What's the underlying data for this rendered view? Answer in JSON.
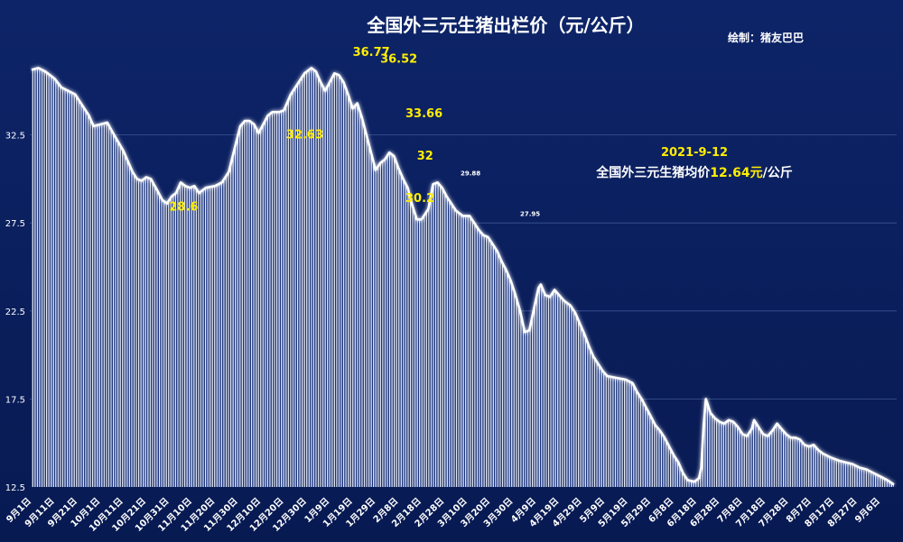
{
  "chart_data": {
    "type": "area",
    "title": "全国外三元生猪出栏价（元/公斤）",
    "credit": "绘制：猪友巴巴",
    "ylim": [
      12.5,
      37.5
    ],
    "yticks": [
      {
        "v": 12.5,
        "label": "12.5"
      },
      {
        "v": 17.5,
        "label": "17.5"
      },
      {
        "v": 22.5,
        "label": "22.5"
      },
      {
        "v": 27.5,
        "label": "27.5"
      },
      {
        "v": 32.5,
        "label": "32.5"
      }
    ],
    "xlabels": [
      "9月1日",
      "9月11日",
      "9月21日",
      "10月1日",
      "10月11日",
      "10月21日",
      "10月31日",
      "11月10日",
      "11月20日",
      "11月30日",
      "12月10日",
      "12月20日",
      "12月30日",
      "1月9日",
      "1月19日",
      "1月29日",
      "2月8日",
      "2月18日",
      "2月28日",
      "3月10日",
      "3月20日",
      "3月30日",
      "4月9日",
      "4月19日",
      "4月29日",
      "5月9日",
      "5月19日",
      "5月29日",
      "6月8日",
      "6月18日",
      "6月28日",
      "7月8日",
      "7月18日",
      "7月28日",
      "8月7日",
      "8月17日",
      "8月27日",
      "9月6日"
    ],
    "days": 377,
    "x_note": "x = day index from 2020-09-01 (0) to 2021-09-12 (376); y = price in 元/公斤",
    "points": [
      [
        0,
        36.2
      ],
      [
        3,
        36.3
      ],
      [
        6,
        36.1
      ],
      [
        10,
        35.7
      ],
      [
        13,
        35.2
      ],
      [
        16,
        35
      ],
      [
        19,
        34.8
      ],
      [
        23,
        34
      ],
      [
        25,
        33.6
      ],
      [
        27,
        33
      ],
      [
        30,
        33.1
      ],
      [
        33,
        33.2
      ],
      [
        36,
        32.5
      ],
      [
        40,
        31.6
      ],
      [
        44,
        30.4
      ],
      [
        46,
        30
      ],
      [
        48,
        29.9
      ],
      [
        50,
        30.1
      ],
      [
        52,
        30
      ],
      [
        55,
        29.3
      ],
      [
        57,
        28.8
      ],
      [
        59,
        28.6
      ],
      [
        61,
        29
      ],
      [
        63,
        29.2
      ],
      [
        65,
        29.8
      ],
      [
        67,
        29.6
      ],
      [
        69,
        29.5
      ],
      [
        71,
        29.6
      ],
      [
        73,
        29.2
      ],
      [
        76,
        29.5
      ],
      [
        80,
        29.6
      ],
      [
        83,
        29.8
      ],
      [
        86,
        30.4
      ],
      [
        89,
        32
      ],
      [
        91,
        33
      ],
      [
        93,
        33.3
      ],
      [
        95,
        33.3
      ],
      [
        97,
        33.1
      ],
      [
        99,
        32.6
      ],
      [
        101,
        33.1
      ],
      [
        103,
        33.6
      ],
      [
        105,
        33.8
      ],
      [
        108,
        33.8
      ],
      [
        110,
        33.9
      ],
      [
        113,
        34.8
      ],
      [
        116,
        35.4
      ],
      [
        119,
        36
      ],
      [
        122,
        36.3
      ],
      [
        124,
        36.1
      ],
      [
        126,
        35.5
      ],
      [
        128,
        35
      ],
      [
        130,
        35.5
      ],
      [
        132,
        36
      ],
      [
        134,
        35.9
      ],
      [
        136,
        35.5
      ],
      [
        138,
        34.8
      ],
      [
        140,
        34
      ],
      [
        142,
        34.3
      ],
      [
        144,
        33.5
      ],
      [
        146,
        32.5
      ],
      [
        148,
        31.5
      ],
      [
        150,
        30.5
      ],
      [
        152,
        30.9
      ],
      [
        154,
        31.1
      ],
      [
        156,
        31.5
      ],
      [
        158,
        31.3
      ],
      [
        160,
        30.6
      ],
      [
        162,
        30
      ],
      [
        164,
        29.5
      ],
      [
        166,
        28.5
      ],
      [
        168,
        27.7
      ],
      [
        170,
        27.7
      ],
      [
        173,
        28.3
      ],
      [
        175,
        29.7
      ],
      [
        177,
        29.8
      ],
      [
        179,
        29.5
      ],
      [
        181,
        29
      ],
      [
        183,
        28.6
      ],
      [
        185,
        28.2
      ],
      [
        188,
        27.9
      ],
      [
        191,
        27.9
      ],
      [
        193,
        27.5
      ],
      [
        195,
        27.1
      ],
      [
        197,
        26.8
      ],
      [
        199,
        26.7
      ],
      [
        201,
        26.3
      ],
      [
        203,
        25.9
      ],
      [
        205,
        25.3
      ],
      [
        207,
        24.8
      ],
      [
        209,
        24.2
      ],
      [
        211,
        23.4
      ],
      [
        213,
        22.5
      ],
      [
        215,
        21.3
      ],
      [
        217,
        21.4
      ],
      [
        219,
        22.6
      ],
      [
        221,
        23.8
      ],
      [
        222,
        24
      ],
      [
        224,
        23.4
      ],
      [
        226,
        23.3
      ],
      [
        228,
        23.7
      ],
      [
        230,
        23.4
      ],
      [
        232,
        23.1
      ],
      [
        235,
        22.8
      ],
      [
        237,
        22.4
      ],
      [
        239,
        21.8
      ],
      [
        241,
        21.2
      ],
      [
        243,
        20.5
      ],
      [
        245,
        19.9
      ],
      [
        247,
        19.5
      ],
      [
        249,
        19.1
      ],
      [
        251,
        18.8
      ],
      [
        255,
        18.7
      ],
      [
        259,
        18.6
      ],
      [
        262,
        18.4
      ],
      [
        264,
        17.9
      ],
      [
        266,
        17.5
      ],
      [
        268,
        17
      ],
      [
        270,
        16.5
      ],
      [
        272,
        16
      ],
      [
        274,
        15.7
      ],
      [
        276,
        15.3
      ],
      [
        278,
        14.8
      ],
      [
        280,
        14.3
      ],
      [
        282,
        13.9
      ],
      [
        284,
        13.3
      ],
      [
        286,
        12.9
      ],
      [
        289,
        12.8
      ],
      [
        291,
        13
      ],
      [
        292,
        13.6
      ],
      [
        293,
        16
      ],
      [
        294,
        17.5
      ],
      [
        296,
        16.7
      ],
      [
        298,
        16.4
      ],
      [
        300,
        16.2
      ],
      [
        302,
        16.1
      ],
      [
        304,
        16.3
      ],
      [
        306,
        16.2
      ],
      [
        308,
        15.9
      ],
      [
        310,
        15.5
      ],
      [
        312,
        15.4
      ],
      [
        314,
        15.8
      ],
      [
        315,
        16.3
      ],
      [
        317,
        15.9
      ],
      [
        319,
        15.5
      ],
      [
        321,
        15.4
      ],
      [
        323,
        15.7
      ],
      [
        325,
        16.1
      ],
      [
        327,
        15.8
      ],
      [
        329,
        15.5
      ],
      [
        331,
        15.3
      ],
      [
        333,
        15.3
      ],
      [
        335,
        15.2
      ],
      [
        337,
        14.9
      ],
      [
        339,
        14.8
      ],
      [
        341,
        14.9
      ],
      [
        343,
        14.6
      ],
      [
        345,
        14.4
      ],
      [
        348,
        14.2
      ],
      [
        352,
        14
      ],
      [
        355,
        13.9
      ],
      [
        358,
        13.8
      ],
      [
        361,
        13.6
      ],
      [
        364,
        13.5
      ],
      [
        367,
        13.3
      ],
      [
        370,
        13.1
      ],
      [
        373,
        12.9
      ],
      [
        376,
        12.64
      ]
    ],
    "annotations": [
      {
        "text": "36.77",
        "x": 140,
        "y": 37.0,
        "style": "yellow"
      },
      {
        "text": "36.52",
        "x": 152,
        "y": 36.6,
        "style": "yellow"
      },
      {
        "text": "33.66",
        "x": 163,
        "y": 33.5,
        "style": "yellow"
      },
      {
        "text": "32.63",
        "x": 111,
        "y": 32.3,
        "style": "yellow"
      },
      {
        "text": "32",
        "x": 168,
        "y": 31.1,
        "style": "yellow"
      },
      {
        "text": "30.2",
        "x": 163,
        "y": 28.7,
        "style": "yellow"
      },
      {
        "text": "28.6",
        "x": 60,
        "y": 28.2,
        "style": "yellow"
      },
      {
        "text": "29.88",
        "x": 187,
        "y": 30.2,
        "style": "small"
      },
      {
        "text": "27.95",
        "x": 213,
        "y": 27.9,
        "style": "small"
      }
    ],
    "note": {
      "date": "2021-9-12",
      "prefix": "全国外三元生猪均价",
      "value": "12.64元",
      "suffix": "/公斤"
    }
  }
}
